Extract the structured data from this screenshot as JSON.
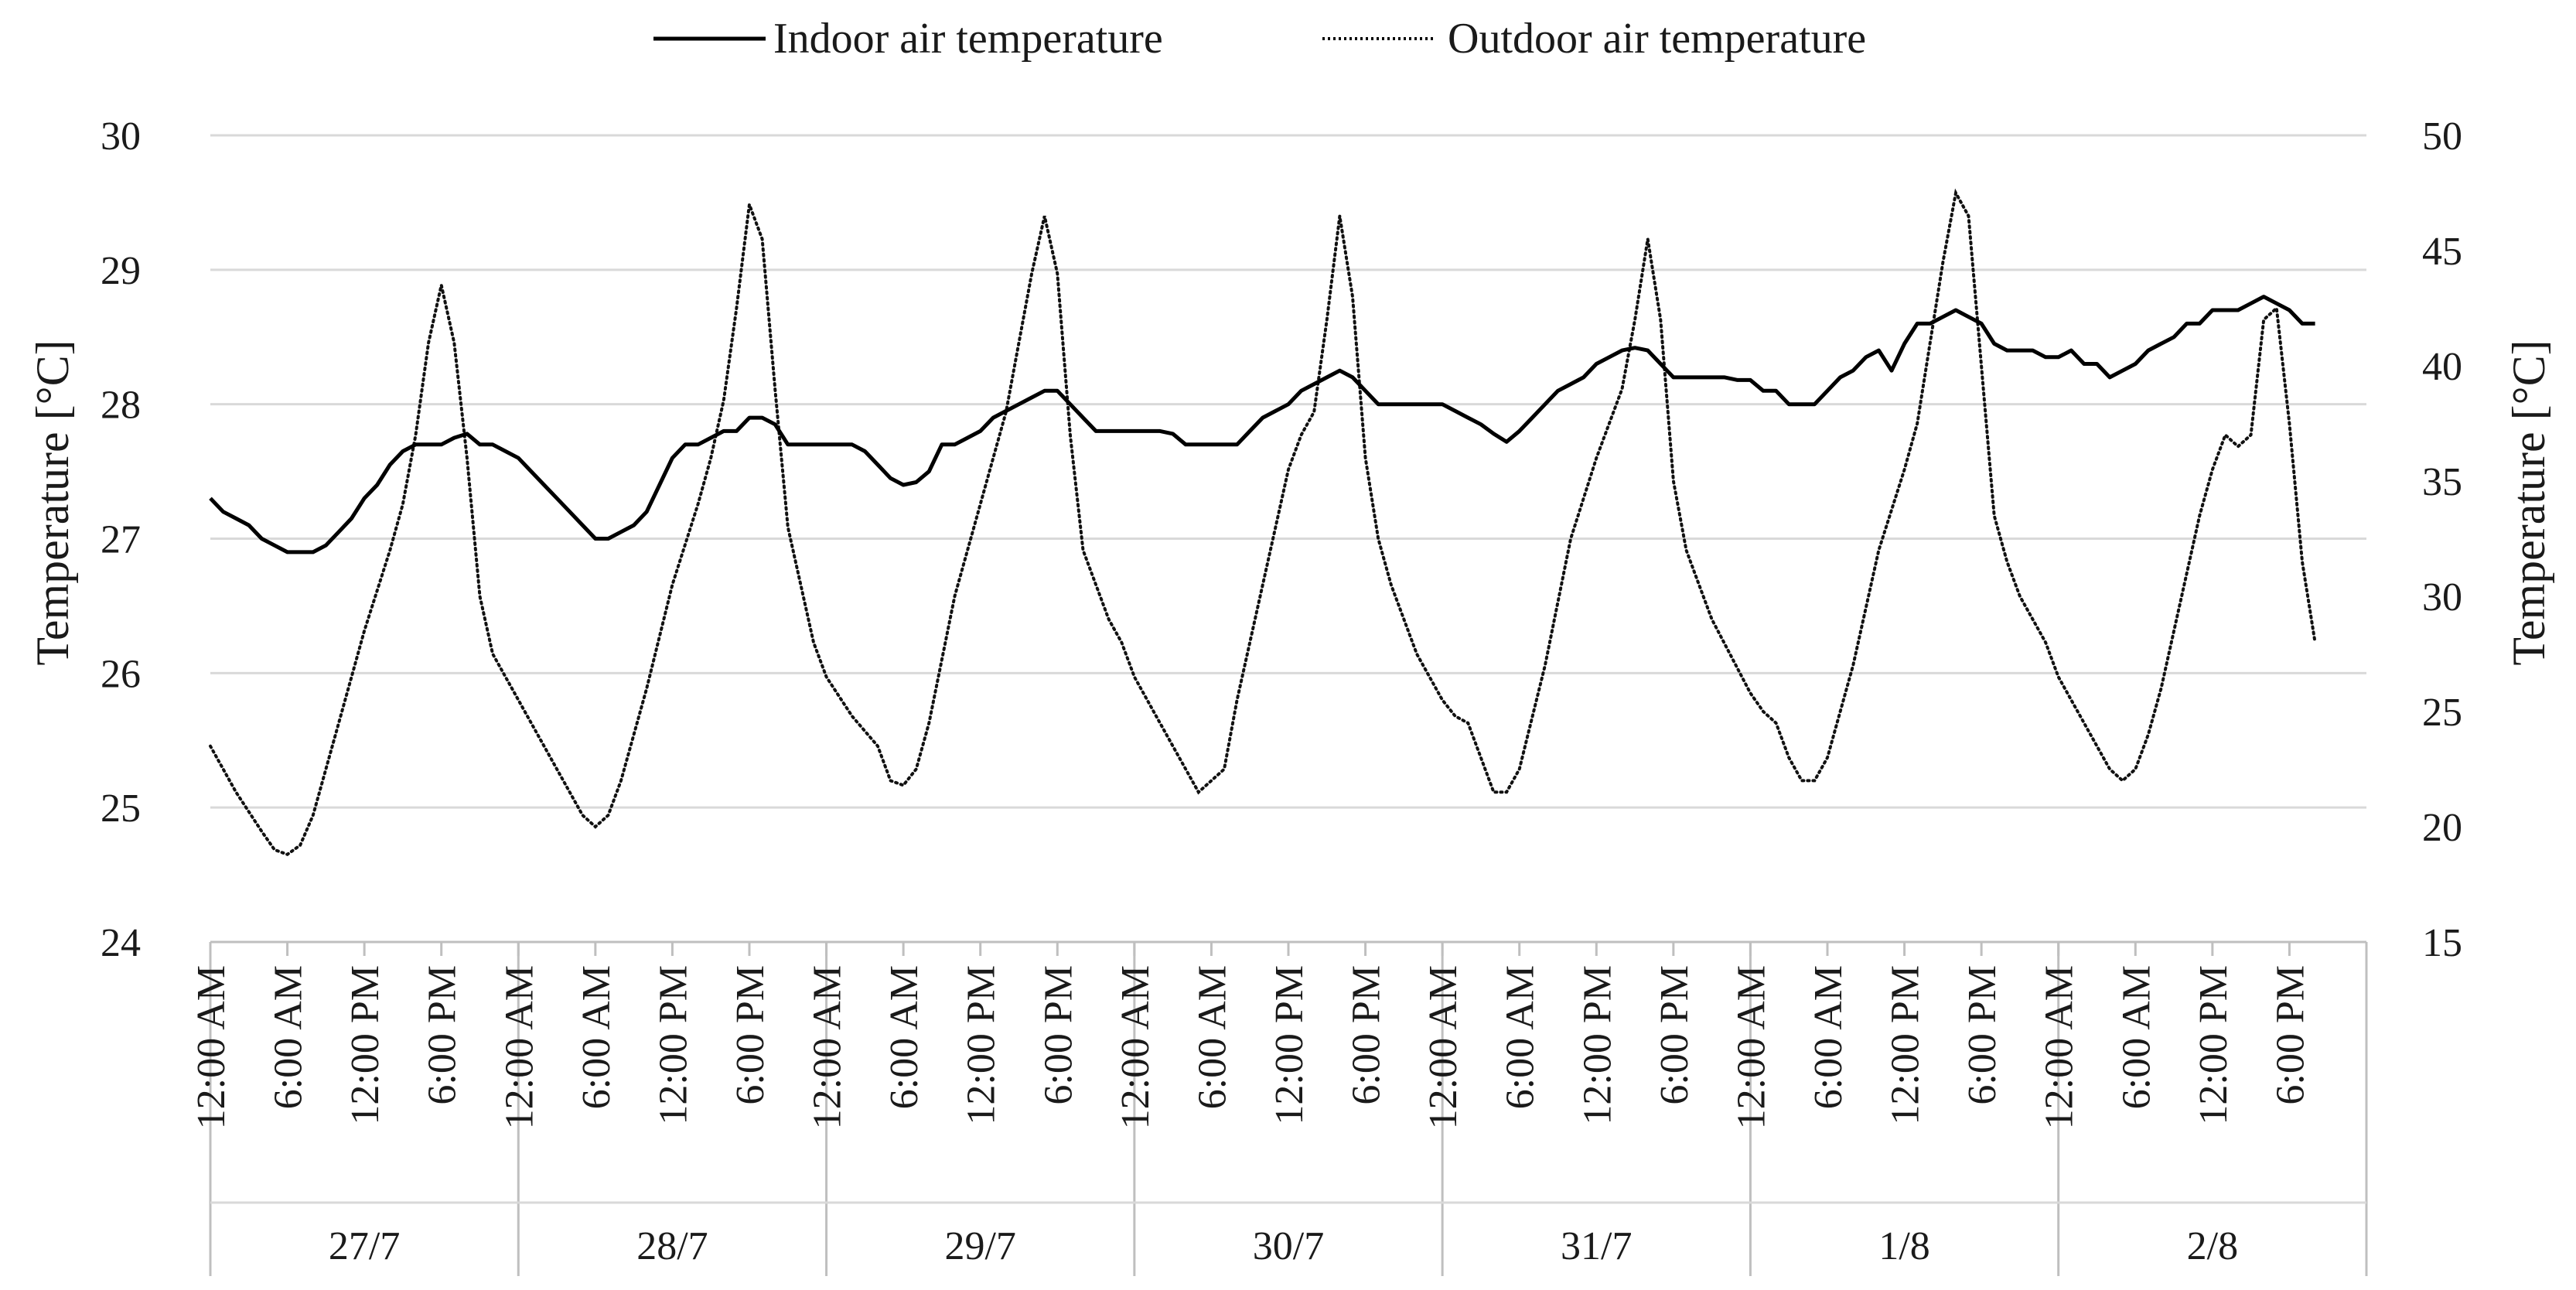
{
  "chart_data": {
    "type": "line",
    "title": "",
    "legend": {
      "position": "top",
      "entries": [
        "Indoor air temperature",
        "Outdoor air temperature"
      ]
    },
    "y_left": {
      "label": "Temperature [°C]",
      "range": [
        24,
        30
      ],
      "ticks": [
        24,
        25,
        26,
        27,
        28,
        29,
        30
      ]
    },
    "y_right": {
      "label": "Temperature [°C]",
      "range": [
        15,
        50
      ],
      "ticks": [
        15,
        20,
        25,
        30,
        35,
        40,
        45,
        50
      ]
    },
    "x": {
      "range_hours": [
        0,
        168
      ],
      "time_labels": [
        "12:00 AM",
        "6:00 AM",
        "12:00 PM",
        "6:00 PM"
      ],
      "days": [
        "27/7",
        "28/7",
        "29/7",
        "30/7",
        "31/7",
        "1/8",
        "2/8"
      ]
    },
    "series": [
      {
        "name": "Indoor air temperature",
        "axis": "left",
        "style": "solid",
        "points": [
          [
            0,
            27.3
          ],
          [
            1,
            27.2
          ],
          [
            2,
            27.15
          ],
          [
            3,
            27.1
          ],
          [
            4,
            27.0
          ],
          [
            5,
            26.95
          ],
          [
            6,
            26.9
          ],
          [
            7,
            26.9
          ],
          [
            8,
            26.9
          ],
          [
            9,
            26.95
          ],
          [
            10,
            27.05
          ],
          [
            11,
            27.15
          ],
          [
            12,
            27.3
          ],
          [
            13,
            27.4
          ],
          [
            14,
            27.55
          ],
          [
            15,
            27.65
          ],
          [
            16,
            27.7
          ],
          [
            17,
            27.7
          ],
          [
            18,
            27.7
          ],
          [
            19,
            27.75
          ],
          [
            20,
            27.78
          ],
          [
            21,
            27.7
          ],
          [
            22,
            27.7
          ],
          [
            23,
            27.65
          ],
          [
            24,
            27.6
          ],
          [
            25,
            27.5
          ],
          [
            26,
            27.4
          ],
          [
            27,
            27.3
          ],
          [
            28,
            27.2
          ],
          [
            29,
            27.1
          ],
          [
            30,
            27.0
          ],
          [
            31,
            27.0
          ],
          [
            32,
            27.05
          ],
          [
            33,
            27.1
          ],
          [
            34,
            27.2
          ],
          [
            35,
            27.4
          ],
          [
            36,
            27.6
          ],
          [
            37,
            27.7
          ],
          [
            38,
            27.7
          ],
          [
            39,
            27.75
          ],
          [
            40,
            27.8
          ],
          [
            41,
            27.8
          ],
          [
            42,
            27.9
          ],
          [
            43,
            27.9
          ],
          [
            44,
            27.85
          ],
          [
            45,
            27.7
          ],
          [
            46,
            27.7
          ],
          [
            47,
            27.7
          ],
          [
            48,
            27.7
          ],
          [
            49,
            27.7
          ],
          [
            50,
            27.7
          ],
          [
            51,
            27.65
          ],
          [
            52,
            27.55
          ],
          [
            53,
            27.45
          ],
          [
            54,
            27.4
          ],
          [
            55,
            27.42
          ],
          [
            56,
            27.5
          ],
          [
            57,
            27.7
          ],
          [
            58,
            27.7
          ],
          [
            59,
            27.75
          ],
          [
            60,
            27.8
          ],
          [
            61,
            27.9
          ],
          [
            62,
            27.95
          ],
          [
            63,
            28.0
          ],
          [
            64,
            28.05
          ],
          [
            65,
            28.1
          ],
          [
            66,
            28.1
          ],
          [
            67,
            28.0
          ],
          [
            68,
            27.9
          ],
          [
            69,
            27.8
          ],
          [
            70,
            27.8
          ],
          [
            71,
            27.8
          ],
          [
            72,
            27.8
          ],
          [
            73,
            27.8
          ],
          [
            74,
            27.8
          ],
          [
            75,
            27.78
          ],
          [
            76,
            27.7
          ],
          [
            77,
            27.7
          ],
          [
            78,
            27.7
          ],
          [
            79,
            27.7
          ],
          [
            80,
            27.7
          ],
          [
            81,
            27.8
          ],
          [
            82,
            27.9
          ],
          [
            83,
            27.95
          ],
          [
            84,
            28.0
          ],
          [
            85,
            28.1
          ],
          [
            86,
            28.15
          ],
          [
            87,
            28.2
          ],
          [
            88,
            28.25
          ],
          [
            89,
            28.2
          ],
          [
            90,
            28.1
          ],
          [
            91,
            28.0
          ],
          [
            92,
            28.0
          ],
          [
            93,
            28.0
          ],
          [
            94,
            28.0
          ],
          [
            95,
            28.0
          ],
          [
            96,
            28.0
          ],
          [
            97,
            27.95
          ],
          [
            98,
            27.9
          ],
          [
            99,
            27.85
          ],
          [
            100,
            27.78
          ],
          [
            101,
            27.72
          ],
          [
            102,
            27.8
          ],
          [
            103,
            27.9
          ],
          [
            104,
            28.0
          ],
          [
            105,
            28.1
          ],
          [
            106,
            28.15
          ],
          [
            107,
            28.2
          ],
          [
            108,
            28.3
          ],
          [
            109,
            28.35
          ],
          [
            110,
            28.4
          ],
          [
            111,
            28.42
          ],
          [
            112,
            28.4
          ],
          [
            113,
            28.3
          ],
          [
            114,
            28.2
          ],
          [
            115,
            28.2
          ],
          [
            116,
            28.2
          ],
          [
            117,
            28.2
          ],
          [
            118,
            28.2
          ],
          [
            119,
            28.18
          ],
          [
            120,
            28.18
          ],
          [
            121,
            28.1
          ],
          [
            122,
            28.1
          ],
          [
            123,
            28.0
          ],
          [
            124,
            28.0
          ],
          [
            125,
            28.0
          ],
          [
            126,
            28.1
          ],
          [
            127,
            28.2
          ],
          [
            128,
            28.25
          ],
          [
            129,
            28.35
          ],
          [
            130,
            28.4
          ],
          [
            131,
            28.25
          ],
          [
            132,
            28.45
          ],
          [
            133,
            28.6
          ],
          [
            134,
            28.6
          ],
          [
            135,
            28.65
          ],
          [
            136,
            28.7
          ],
          [
            137,
            28.65
          ],
          [
            138,
            28.6
          ],
          [
            139,
            28.45
          ],
          [
            140,
            28.4
          ],
          [
            141,
            28.4
          ],
          [
            142,
            28.4
          ],
          [
            143,
            28.35
          ],
          [
            144,
            28.35
          ],
          [
            145,
            28.4
          ],
          [
            146,
            28.3
          ],
          [
            147,
            28.3
          ],
          [
            148,
            28.2
          ],
          [
            149,
            28.25
          ],
          [
            150,
            28.3
          ],
          [
            151,
            28.4
          ],
          [
            152,
            28.45
          ],
          [
            153,
            28.5
          ],
          [
            154,
            28.6
          ],
          [
            155,
            28.6
          ],
          [
            156,
            28.7
          ],
          [
            157,
            28.7
          ],
          [
            158,
            28.7
          ],
          [
            159,
            28.75
          ],
          [
            160,
            28.8
          ],
          [
            161,
            28.75
          ],
          [
            162,
            28.7
          ],
          [
            163,
            28.6
          ],
          [
            164,
            28.6
          ]
        ]
      },
      {
        "name": "Outdoor air temperature",
        "axis": "right",
        "style": "dotted",
        "points": [
          [
            0,
            23.5
          ],
          [
            2,
            21.5
          ],
          [
            4,
            19.8
          ],
          [
            5,
            19.0
          ],
          [
            6,
            18.8
          ],
          [
            7,
            19.2
          ],
          [
            8,
            20.5
          ],
          [
            10,
            24.5
          ],
          [
            12,
            28.5
          ],
          [
            14,
            32.0
          ],
          [
            15,
            34.0
          ],
          [
            16,
            37.0
          ],
          [
            17,
            41.0
          ],
          [
            18,
            43.5
          ],
          [
            19,
            41.0
          ],
          [
            20,
            36.0
          ],
          [
            21,
            30.0
          ],
          [
            22,
            27.5
          ],
          [
            23,
            26.5
          ],
          [
            24,
            25.5
          ],
          [
            26,
            23.5
          ],
          [
            28,
            21.5
          ],
          [
            29,
            20.5
          ],
          [
            30,
            20.0
          ],
          [
            31,
            20.5
          ],
          [
            32,
            22.0
          ],
          [
            34,
            26.0
          ],
          [
            36,
            30.5
          ],
          [
            38,
            34.0
          ],
          [
            39,
            36.0
          ],
          [
            40,
            38.5
          ],
          [
            41,
            42.5
          ],
          [
            42,
            47.0
          ],
          [
            43,
            45.5
          ],
          [
            44,
            39.0
          ],
          [
            45,
            33.0
          ],
          [
            46,
            30.5
          ],
          [
            47,
            28.0
          ],
          [
            48,
            26.5
          ],
          [
            50,
            24.8
          ],
          [
            52,
            23.5
          ],
          [
            53,
            22.0
          ],
          [
            54,
            21.8
          ],
          [
            55,
            22.5
          ],
          [
            56,
            24.5
          ],
          [
            58,
            30.0
          ],
          [
            60,
            34.0
          ],
          [
            62,
            38.0
          ],
          [
            63,
            41.0
          ],
          [
            64,
            44.0
          ],
          [
            65,
            46.5
          ],
          [
            66,
            44.0
          ],
          [
            67,
            37.0
          ],
          [
            68,
            32.0
          ],
          [
            69,
            30.5
          ],
          [
            70,
            29.0
          ],
          [
            71,
            28.0
          ],
          [
            72,
            26.5
          ],
          [
            74,
            24.5
          ],
          [
            76,
            22.5
          ],
          [
            77,
            21.5
          ],
          [
            78,
            22.0
          ],
          [
            79,
            22.5
          ],
          [
            80,
            25.5
          ],
          [
            82,
            30.5
          ],
          [
            84,
            35.5
          ],
          [
            85,
            37.0
          ],
          [
            86,
            38.0
          ],
          [
            87,
            42.0
          ],
          [
            88,
            46.5
          ],
          [
            89,
            43.0
          ],
          [
            90,
            36.0
          ],
          [
            91,
            32.5
          ],
          [
            92,
            30.5
          ],
          [
            93,
            29.0
          ],
          [
            94,
            27.5
          ],
          [
            96,
            25.5
          ],
          [
            97,
            24.8
          ],
          [
            98,
            24.5
          ],
          [
            99,
            23.0
          ],
          [
            100,
            21.5
          ],
          [
            101,
            21.5
          ],
          [
            102,
            22.5
          ],
          [
            104,
            27.0
          ],
          [
            106,
            32.5
          ],
          [
            108,
            36.0
          ],
          [
            109,
            37.5
          ],
          [
            110,
            39.0
          ],
          [
            111,
            42.0
          ],
          [
            112,
            45.5
          ],
          [
            113,
            42.0
          ],
          [
            114,
            35.0
          ],
          [
            115,
            32.0
          ],
          [
            116,
            30.5
          ],
          [
            117,
            29.0
          ],
          [
            120,
            25.8
          ],
          [
            121,
            25.0
          ],
          [
            122,
            24.5
          ],
          [
            123,
            23.0
          ],
          [
            124,
            22.0
          ],
          [
            125,
            22.0
          ],
          [
            126,
            23.0
          ],
          [
            128,
            27.0
          ],
          [
            130,
            32.0
          ],
          [
            132,
            35.5
          ],
          [
            133,
            37.5
          ],
          [
            134,
            41.0
          ],
          [
            135,
            44.5
          ],
          [
            136,
            47.5
          ],
          [
            137,
            46.5
          ],
          [
            138,
            40.0
          ],
          [
            139,
            33.5
          ],
          [
            140,
            31.5
          ],
          [
            141,
            30.0
          ],
          [
            142,
            29.0
          ],
          [
            143,
            28.0
          ],
          [
            144,
            26.5
          ],
          [
            145,
            25.5
          ],
          [
            146,
            24.5
          ],
          [
            147,
            23.5
          ],
          [
            148,
            22.5
          ],
          [
            149,
            22.0
          ],
          [
            150,
            22.5
          ],
          [
            151,
            24.0
          ],
          [
            152,
            26.0
          ],
          [
            153,
            28.5
          ],
          [
            154,
            31.0
          ],
          [
            155,
            33.5
          ],
          [
            156,
            35.5
          ],
          [
            157,
            37.0
          ],
          [
            158,
            36.5
          ],
          [
            159,
            37.0
          ],
          [
            160,
            42.0
          ],
          [
            161,
            42.5
          ],
          [
            162,
            37.5
          ],
          [
            163,
            31.5
          ],
          [
            164,
            28.0
          ]
        ]
      }
    ]
  }
}
